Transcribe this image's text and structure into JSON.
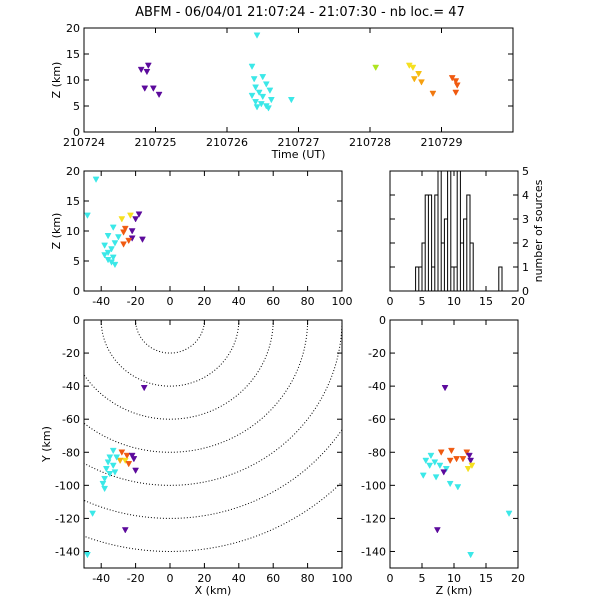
{
  "header": {
    "title": "ABFM - 06/04/01 21:07:24 - 21:07:30 - nb loc.=      47"
  },
  "chart_data": [
    {
      "id": "time-height",
      "type": "scatter",
      "xlabel": "Time (UT)",
      "ylabel": "Z (km)",
      "xlim": [
        210724,
        210730
      ],
      "ylim": [
        0,
        20
      ],
      "xticks": [
        210724,
        210725,
        210726,
        210727,
        210728,
        210729
      ],
      "xtick_labels": [
        "210724",
        "210725",
        "210726",
        "210727",
        "210728",
        "210729"
      ],
      "yticks": [
        0,
        5,
        10,
        15,
        20
      ],
      "points": [
        {
          "x": 210724.8,
          "y": 12.0,
          "c": "#5c0a9c"
        },
        {
          "x": 210724.9,
          "y": 12.8,
          "c": "#5c0a9c"
        },
        {
          "x": 210724.88,
          "y": 11.6,
          "c": "#5c0a9c"
        },
        {
          "x": 210724.85,
          "y": 8.4,
          "c": "#5c0a9c"
        },
        {
          "x": 210724.97,
          "y": 8.4,
          "c": "#5c0a9c"
        },
        {
          "x": 210725.05,
          "y": 7.2,
          "c": "#5c0a9c"
        },
        {
          "x": 210726.42,
          "y": 18.6,
          "c": "#3be8e8"
        },
        {
          "x": 210726.35,
          "y": 12.6,
          "c": "#3be8e8"
        },
        {
          "x": 210726.5,
          "y": 10.6,
          "c": "#3be8e8"
        },
        {
          "x": 210726.38,
          "y": 10.2,
          "c": "#3be8e8"
        },
        {
          "x": 210726.55,
          "y": 9.2,
          "c": "#3be8e8"
        },
        {
          "x": 210726.4,
          "y": 8.6,
          "c": "#3be8e8"
        },
        {
          "x": 210726.6,
          "y": 8.0,
          "c": "#3be8e8"
        },
        {
          "x": 210726.45,
          "y": 7.6,
          "c": "#3be8e8"
        },
        {
          "x": 210726.35,
          "y": 7.0,
          "c": "#3be8e8"
        },
        {
          "x": 210726.5,
          "y": 6.8,
          "c": "#3be8e8"
        },
        {
          "x": 210726.62,
          "y": 6.2,
          "c": "#3be8e8"
        },
        {
          "x": 210726.4,
          "y": 5.8,
          "c": "#3be8e8"
        },
        {
          "x": 210726.48,
          "y": 5.4,
          "c": "#3be8e8"
        },
        {
          "x": 210726.55,
          "y": 5.0,
          "c": "#3be8e8"
        },
        {
          "x": 210726.42,
          "y": 4.8,
          "c": "#3be8e8"
        },
        {
          "x": 210726.58,
          "y": 4.6,
          "c": "#3be8e8"
        },
        {
          "x": 210726.9,
          "y": 6.2,
          "c": "#3be8e8"
        },
        {
          "x": 210728.08,
          "y": 12.4,
          "c": "#aee520"
        },
        {
          "x": 210728.55,
          "y": 12.8,
          "c": "#f6e020"
        },
        {
          "x": 210728.6,
          "y": 12.4,
          "c": "#f6e020"
        },
        {
          "x": 210728.68,
          "y": 11.2,
          "c": "#f6c010"
        },
        {
          "x": 210728.62,
          "y": 10.2,
          "c": "#f6b010"
        },
        {
          "x": 210728.72,
          "y": 9.6,
          "c": "#f6a010"
        },
        {
          "x": 210728.88,
          "y": 7.4,
          "c": "#f07810"
        },
        {
          "x": 210729.15,
          "y": 10.4,
          "c": "#f05a10"
        },
        {
          "x": 210729.2,
          "y": 9.8,
          "c": "#f05a10"
        },
        {
          "x": 210729.22,
          "y": 9.0,
          "c": "#f05a10"
        },
        {
          "x": 210729.2,
          "y": 7.6,
          "c": "#f05a10"
        }
      ]
    },
    {
      "id": "x-height",
      "type": "scatter",
      "xlabel": "",
      "ylabel": "Z (km)",
      "xlim": [
        -50,
        100
      ],
      "ylim": [
        0,
        20
      ],
      "xticks": [
        -40,
        -20,
        0,
        20,
        40,
        60,
        80,
        100
      ],
      "yticks": [
        0,
        5,
        10,
        15,
        20
      ],
      "points": [
        {
          "x": -43,
          "y": 18.6,
          "c": "#3be8e8"
        },
        {
          "x": -48,
          "y": 12.6,
          "c": "#3be8e8"
        },
        {
          "x": -23,
          "y": 12.6,
          "c": "#f6e020"
        },
        {
          "x": -18,
          "y": 12.8,
          "c": "#5c0a9c"
        },
        {
          "x": -20,
          "y": 12.0,
          "c": "#5c0a9c"
        },
        {
          "x": -28,
          "y": 12.0,
          "c": "#f6e020"
        },
        {
          "x": -33,
          "y": 10.6,
          "c": "#3be8e8"
        },
        {
          "x": -26,
          "y": 10.4,
          "c": "#f05a10"
        },
        {
          "x": -22,
          "y": 10.0,
          "c": "#5c0a9c"
        },
        {
          "x": -27,
          "y": 9.8,
          "c": "#f05a10"
        },
        {
          "x": -36,
          "y": 9.2,
          "c": "#3be8e8"
        },
        {
          "x": -30,
          "y": 9.0,
          "c": "#3be8e8"
        },
        {
          "x": -22,
          "y": 8.8,
          "c": "#5c0a9c"
        },
        {
          "x": -16,
          "y": 8.6,
          "c": "#5c0a9c"
        },
        {
          "x": -24,
          "y": 8.4,
          "c": "#f05a10"
        },
        {
          "x": -32,
          "y": 8.0,
          "c": "#3be8e8"
        },
        {
          "x": -27,
          "y": 7.8,
          "c": "#f05a10"
        },
        {
          "x": -38,
          "y": 7.6,
          "c": "#3be8e8"
        },
        {
          "x": -34,
          "y": 7.0,
          "c": "#3be8e8"
        },
        {
          "x": -36,
          "y": 6.4,
          "c": "#3be8e8"
        },
        {
          "x": -38,
          "y": 6.0,
          "c": "#3be8e8"
        },
        {
          "x": -33,
          "y": 5.6,
          "c": "#3be8e8"
        },
        {
          "x": -36,
          "y": 5.2,
          "c": "#3be8e8"
        },
        {
          "x": -34,
          "y": 4.8,
          "c": "#3be8e8"
        },
        {
          "x": -32,
          "y": 4.4,
          "c": "#3be8e8"
        }
      ]
    },
    {
      "id": "height-histogram",
      "type": "bar",
      "xlabel": "",
      "ylabel": "number of sources",
      "xlim": [
        0,
        20
      ],
      "ylim": [
        0,
        5
      ],
      "xticks": [
        0,
        5,
        10,
        15,
        20
      ],
      "yticks": [
        0,
        1,
        2,
        3,
        4,
        5
      ],
      "bin_width": 0.5,
      "bin_start": 4.0,
      "counts": [
        1,
        1,
        2,
        4,
        4,
        1,
        4,
        5,
        2,
        3,
        5,
        1,
        1,
        5,
        2,
        3,
        4,
        2,
        0,
        0,
        0,
        0,
        0,
        0,
        0,
        0,
        1,
        0
      ]
    },
    {
      "id": "plan-view",
      "type": "scatter",
      "xlabel": "X (km)",
      "ylabel": "Y (km)",
      "xlim": [
        -50,
        100
      ],
      "ylim": [
        -150,
        0
      ],
      "xticks": [
        -40,
        -20,
        0,
        20,
        40,
        60,
        80,
        100
      ],
      "yticks": [
        0,
        -20,
        -40,
        -60,
        -80,
        -100,
        -120,
        -140
      ],
      "range_rings_km": [
        20,
        40,
        60,
        80,
        100,
        120,
        140
      ],
      "ring_center": [
        0,
        0
      ],
      "points": [
        {
          "x": -15,
          "y": -41,
          "c": "#5c0a9c"
        },
        {
          "x": -28,
          "y": -80,
          "c": "#f05a10"
        },
        {
          "x": -25,
          "y": -82,
          "c": "#f05a10"
        },
        {
          "x": -22,
          "y": -82,
          "c": "#5c0a9c"
        },
        {
          "x": -21,
          "y": -84,
          "c": "#5c0a9c"
        },
        {
          "x": -26,
          "y": -85,
          "c": "#f6e020"
        },
        {
          "x": -29,
          "y": -85,
          "c": "#f6b010"
        },
        {
          "x": -24,
          "y": -87,
          "c": "#f05a10"
        },
        {
          "x": -33,
          "y": -79,
          "c": "#3be8e8"
        },
        {
          "x": -35,
          "y": -83,
          "c": "#3be8e8"
        },
        {
          "x": -31,
          "y": -83,
          "c": "#3be8e8"
        },
        {
          "x": -36,
          "y": -86,
          "c": "#3be8e8"
        },
        {
          "x": -33,
          "y": -88,
          "c": "#3be8e8"
        },
        {
          "x": -37,
          "y": -90,
          "c": "#3be8e8"
        },
        {
          "x": -35,
          "y": -93,
          "c": "#3be8e8"
        },
        {
          "x": -38,
          "y": -96,
          "c": "#3be8e8"
        },
        {
          "x": -39,
          "y": -99,
          "c": "#3be8e8"
        },
        {
          "x": -38,
          "y": -102,
          "c": "#3be8e8"
        },
        {
          "x": -32,
          "y": -92,
          "c": "#3be8e8"
        },
        {
          "x": -45,
          "y": -117,
          "c": "#3be8e8"
        },
        {
          "x": -26,
          "y": -127,
          "c": "#5c0a9c"
        },
        {
          "x": -48,
          "y": -142,
          "c": "#3be8e8"
        },
        {
          "x": -20,
          "y": -91,
          "c": "#5c0a9c"
        }
      ]
    },
    {
      "id": "height-y",
      "type": "scatter",
      "xlabel": "Z (km)",
      "ylabel": "",
      "xlim": [
        0,
        20
      ],
      "ylim": [
        -150,
        0
      ],
      "xticks": [
        0,
        5,
        10,
        15,
        20
      ],
      "yticks": [
        0,
        -20,
        -40,
        -60,
        -80,
        -100,
        -120,
        -140
      ],
      "points": [
        {
          "x": 8.6,
          "y": -41,
          "c": "#5c0a9c"
        },
        {
          "x": 8.0,
          "y": -80,
          "c": "#f05a10"
        },
        {
          "x": 9.6,
          "y": -79,
          "c": "#f05a10"
        },
        {
          "x": 12.0,
          "y": -80,
          "c": "#f05a10"
        },
        {
          "x": 12.4,
          "y": -82,
          "c": "#5c0a9c"
        },
        {
          "x": 11.4,
          "y": -84,
          "c": "#f05a10"
        },
        {
          "x": 10.4,
          "y": -84,
          "c": "#f05a10"
        },
        {
          "x": 9.4,
          "y": -85,
          "c": "#f05a10"
        },
        {
          "x": 12.6,
          "y": -85,
          "c": "#5c0a9c"
        },
        {
          "x": 12.8,
          "y": -88,
          "c": "#f6e020"
        },
        {
          "x": 12.2,
          "y": -90,
          "c": "#f6e020"
        },
        {
          "x": 6.4,
          "y": -82,
          "c": "#3be8e8"
        },
        {
          "x": 5.6,
          "y": -85,
          "c": "#3be8e8"
        },
        {
          "x": 7.0,
          "y": -86,
          "c": "#3be8e8"
        },
        {
          "x": 7.8,
          "y": -88,
          "c": "#3be8e8"
        },
        {
          "x": 6.2,
          "y": -88,
          "c": "#3be8e8"
        },
        {
          "x": 8.8,
          "y": -90,
          "c": "#3be8e8"
        },
        {
          "x": 5.2,
          "y": -94,
          "c": "#3be8e8"
        },
        {
          "x": 7.2,
          "y": -95,
          "c": "#3be8e8"
        },
        {
          "x": 9.4,
          "y": -99,
          "c": "#3be8e8"
        },
        {
          "x": 10.6,
          "y": -101,
          "c": "#3be8e8"
        },
        {
          "x": 8.4,
          "y": -92,
          "c": "#5c0a9c"
        },
        {
          "x": 7.4,
          "y": -127,
          "c": "#5c0a9c"
        },
        {
          "x": 18.6,
          "y": -117,
          "c": "#3be8e8"
        },
        {
          "x": 12.6,
          "y": -142,
          "c": "#3be8e8"
        }
      ]
    }
  ]
}
